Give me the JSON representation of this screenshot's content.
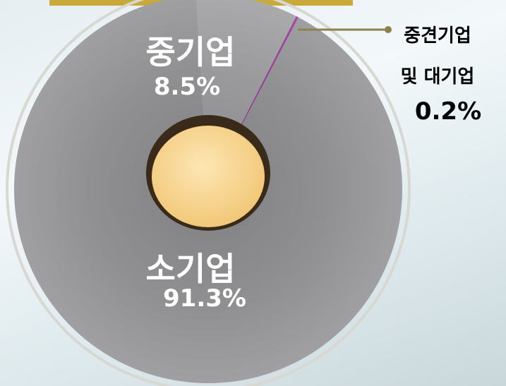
{
  "chart_data": {
    "type": "pie",
    "categories": [
      "소기업",
      "중기업",
      "중견기업 및 대기업"
    ],
    "values": [
      91.3,
      8.5,
      0.2
    ],
    "value_labels": [
      "91.3%",
      "8.5%",
      "0.2%"
    ],
    "colors": [
      "#8a8a8c",
      "#9a9a9c",
      "#8b0a8b"
    ]
  }
}
